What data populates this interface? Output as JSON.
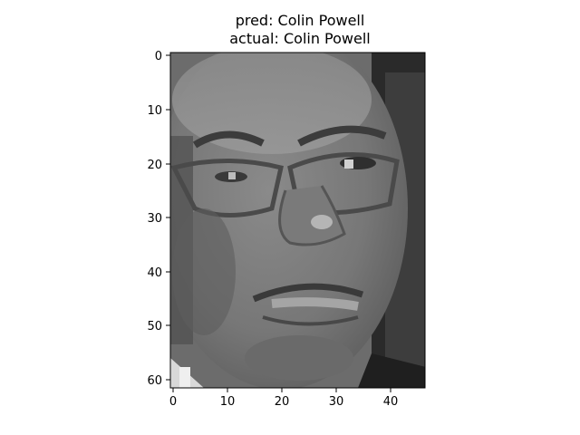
{
  "title": {
    "line1": "pred: Colin Powell",
    "line2": "actual: Colin Powell"
  },
  "image": {
    "description_icon": "grayscale-face-photo",
    "rows": 62,
    "cols": 47,
    "colormap": "gray"
  },
  "axes": {
    "xlim": [
      -0.5,
      46.5
    ],
    "ylim": [
      61.5,
      -0.5
    ],
    "xticks": [
      "0",
      "10",
      "20",
      "30",
      "40"
    ],
    "yticks": [
      "0",
      "10",
      "20",
      "30",
      "40",
      "50",
      "60"
    ]
  }
}
